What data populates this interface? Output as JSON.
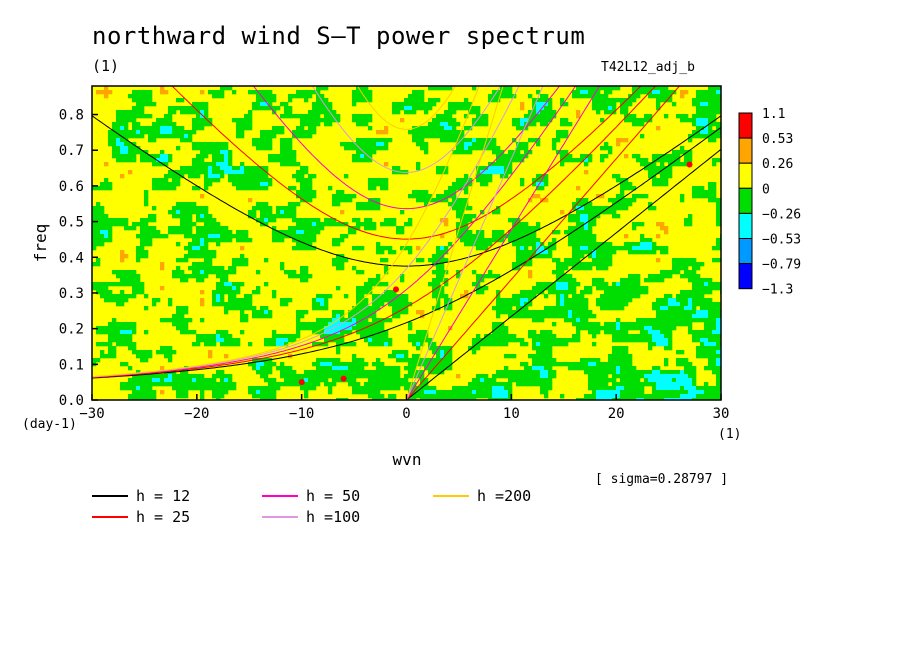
{
  "header": {
    "title": "northward wind S–T power spectrum",
    "unit": "(1)",
    "run_id": "T42L12_adj_b"
  },
  "chart_data": {
    "type": "heatmap",
    "title": "northward wind S–T power spectrum",
    "xlabel": "wvn",
    "ylabel": "freq",
    "x_unit": "(1)",
    "y_unit": "(day-1)",
    "xlim": [
      -30,
      30
    ],
    "ylim": [
      0,
      0.88
    ],
    "x_ticks": [
      -30,
      -20,
      -10,
      0,
      10,
      20,
      30
    ],
    "x_tick_labels": [
      "−30",
      "−20",
      "−10",
      "0",
      "10",
      "20",
      "30"
    ],
    "y_ticks": [
      0,
      0.1,
      0.2,
      0.3,
      0.4,
      0.5,
      0.6,
      0.7,
      0.8
    ],
    "y_tick_labels": [
      "0.0",
      "0.1",
      "0.2",
      "0.3",
      "0.4",
      "0.5",
      "0.6",
      "0.7",
      "0.8"
    ],
    "colorbar": {
      "levels": [
        "1.1",
        "0.53",
        "0.26",
        "0",
        "−0.26",
        "−0.53",
        "−0.79",
        "−1.3"
      ],
      "colors": [
        "#ff0000",
        "#ffa500",
        "#ffff00",
        "#00dd00",
        "#00ffff",
        "#0099ff",
        "#0000ff"
      ]
    },
    "sigma_label": "[ sigma=0.28797 ]",
    "dispersion_curves": [
      {
        "label": "h = 12",
        "color": "#000000"
      },
      {
        "label": "h = 25",
        "color": "#ff0000"
      },
      {
        "label": "h = 50",
        "color": "#ff00cc"
      },
      {
        "label": "h =100",
        "color": "#dd99dd"
      },
      {
        "label": "h =200",
        "color": "#ffcc00"
      }
    ],
    "grid": false
  }
}
